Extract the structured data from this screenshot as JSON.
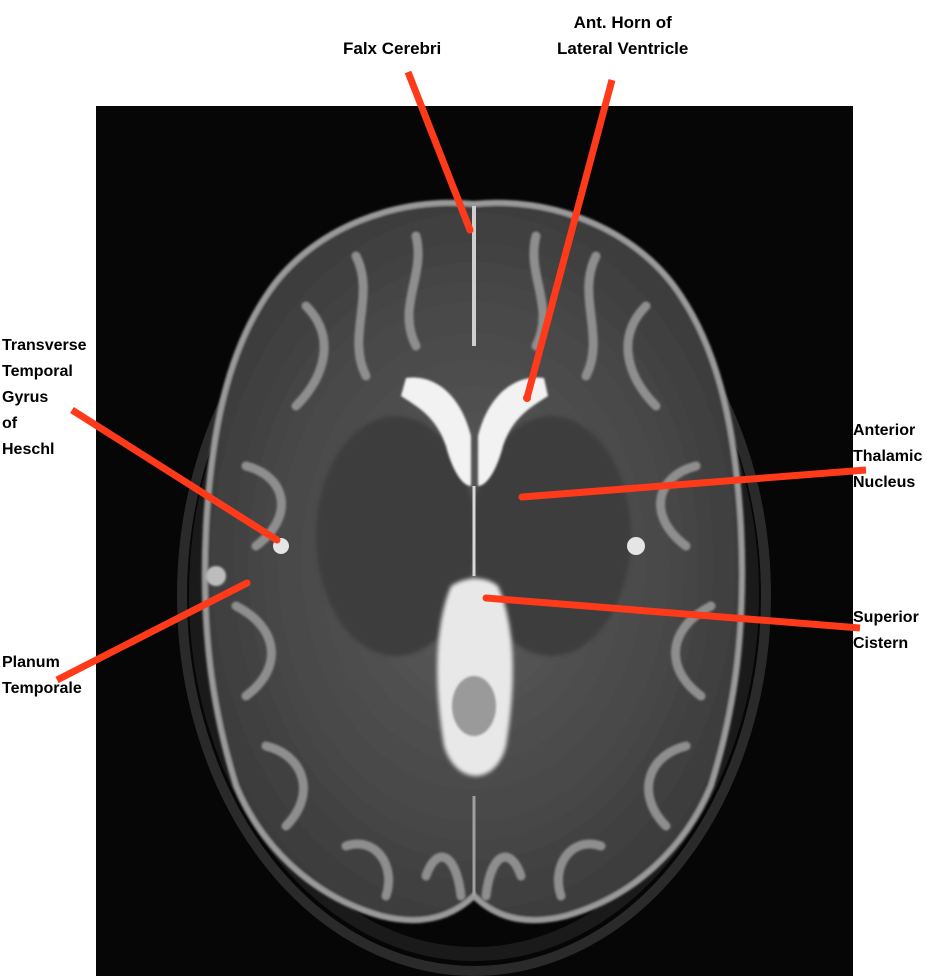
{
  "image": {
    "subject": "axial-t2-brain-mri",
    "frame_color": "#060606",
    "pointer_color": "#ff3a1a"
  },
  "labels": {
    "falx": "Falx Cerebri",
    "ant_horn": "Ant. Horn of\nLateral Ventricle",
    "transverse": "Transverse\nTemporal\nGyrus\nof\nHeschl",
    "planum": "Planum\nTemporale",
    "anterior_thalamic": "Anterior\nThalamic\nNucleus",
    "superior_cistern": "Superior\nCistern"
  }
}
